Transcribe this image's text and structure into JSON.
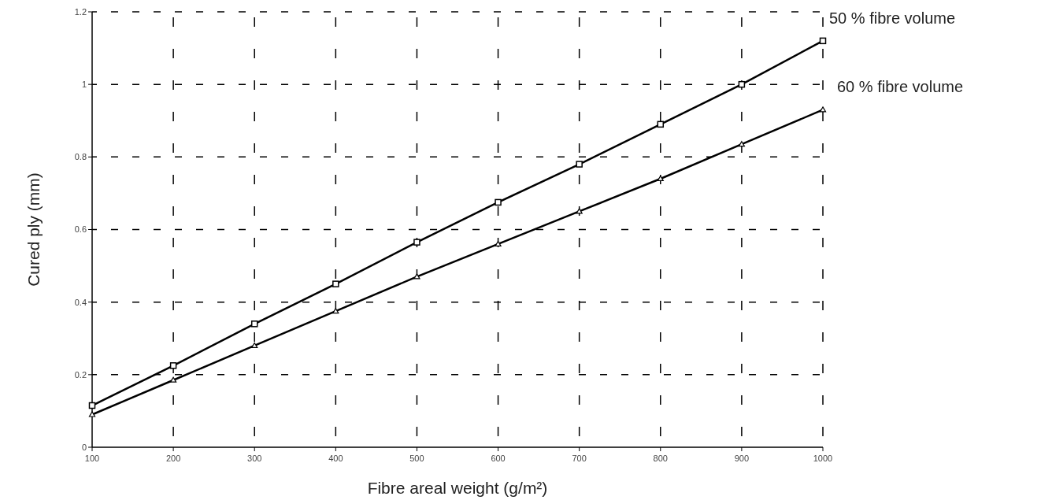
{
  "chart_data": {
    "type": "line",
    "xlabel": "Fibre areal weight (g/m²)",
    "ylabel": "Cured ply (mm)",
    "x": [
      100,
      200,
      300,
      400,
      500,
      600,
      700,
      800,
      900,
      1000
    ],
    "series": [
      {
        "name": "50 % fibre volume",
        "color": "#000000",
        "marker": "square",
        "values": [
          0.115,
          0.225,
          0.34,
          0.45,
          0.565,
          0.675,
          0.78,
          0.89,
          1.0,
          1.12
        ]
      },
      {
        "name": "60 % fibre volume",
        "color": "#000000",
        "marker": "triangle",
        "values": [
          0.09,
          0.185,
          0.28,
          0.375,
          0.47,
          0.56,
          0.65,
          0.74,
          0.835,
          0.93
        ]
      }
    ],
    "xlim": [
      100,
      1000
    ],
    "xticks": [
      100,
      200,
      300,
      400,
      500,
      600,
      700,
      800,
      900,
      1000
    ],
    "ylim": [
      0,
      1.2
    ],
    "yticks": [
      0,
      0.2,
      0.4,
      0.6,
      0.8,
      1,
      1.2
    ],
    "grid": true,
    "line_style": "solid",
    "legend": false
  }
}
